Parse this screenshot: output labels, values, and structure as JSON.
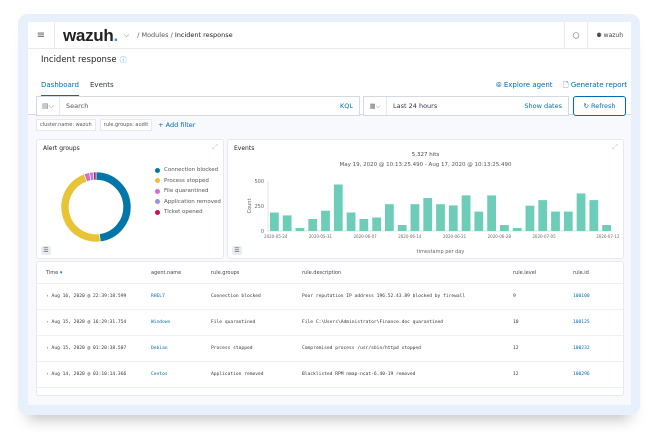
{
  "header": {
    "logo": "wazuh",
    "logo_dot": ".",
    "breadcrumb_modules": "Modules",
    "breadcrumb_current": "Incident response",
    "user": "wazuh"
  },
  "page": {
    "title": "Incident response"
  },
  "tabs": [
    {
      "label": "Dashboard",
      "active": true
    },
    {
      "label": "Events",
      "active": false
    }
  ],
  "actions": {
    "explore_agent": "Explore agent",
    "generate_report": "Generate report"
  },
  "search": {
    "placeholder": "Search",
    "kql": "KQL"
  },
  "date": {
    "range": "Last 24 hours",
    "show_dates": "Show dates",
    "refresh": "Refresh"
  },
  "filters": [
    "cluster.name: wazuh",
    "rule.groups: audit"
  ],
  "add_filter": "+ Add filter",
  "alert_groups": {
    "title": "Alert groups"
  },
  "events": {
    "title": "Events",
    "hits": "5,327 hits",
    "range": "May 19, 2020 @ 10:13:25.490 - Aug 17, 2020 @ 10:13:25.490"
  },
  "chart_data": [
    {
      "type": "pie",
      "title": "Alert groups",
      "donut": true,
      "labels": [
        "Connection blocked",
        "Process stopped",
        "File quarantined",
        "Application removed",
        "Ticket opened"
      ],
      "values": [
        48,
        46.5,
        2.5,
        1.8,
        1.2
      ],
      "colors": [
        "#0077a8",
        "#e7c435",
        "#d96bcf",
        "#9f8fd8",
        "#c8105e"
      ]
    },
    {
      "type": "bar",
      "title": "Events",
      "xlabel": "timestamp per day",
      "ylabel": "Count",
      "ylim": [
        0,
        500
      ],
      "yticks": [
        "0",
        "250",
        "500"
      ],
      "xticks": [
        "2020-05-24",
        "2020-05-31",
        "2020-06-07",
        "2020-06-14",
        "2020-06-21",
        "2020-06-28",
        "2020-07-05",
        "2020-07-12"
      ],
      "values": [
        185,
        156,
        30,
        120,
        203,
        465,
        185,
        120,
        135,
        268,
        60,
        268,
        330,
        268,
        256,
        356,
        194,
        356,
        60,
        30,
        253,
        309,
        194,
        194,
        376,
        309,
        60
      ],
      "color": "#6dcdb8"
    }
  ],
  "table": {
    "headers": [
      "Time",
      "agent.name",
      "rule.groups",
      "rule.description",
      "rule.level",
      "rule.id"
    ],
    "rows": [
      [
        "Aug 16, 2020 @ 22:39:18.599",
        "RHEL7",
        "Connection blocked",
        "Poor reputation IP address 196.52.43.89 blocked by firewall",
        "9",
        "100100"
      ],
      [
        "Aug 15, 2020 @ 16:29:31.754",
        "Windows",
        "File quarantined",
        "File C:\\Users\\Administrator\\Finance.doc quarantined",
        "10",
        "100125"
      ],
      [
        "Aug 15, 2020 @ 01:20:38.587",
        "Debian",
        "Process stopped",
        "Compromised process /usr/sbin/httpd stopped",
        "12",
        "100232"
      ],
      [
        "Aug 14, 2020 @ 03:10:14.366",
        "Centos",
        "Application removed",
        "Blacklisted RPM nmap-ncat-6.40-19 removed",
        "12",
        "100296"
      ]
    ]
  }
}
